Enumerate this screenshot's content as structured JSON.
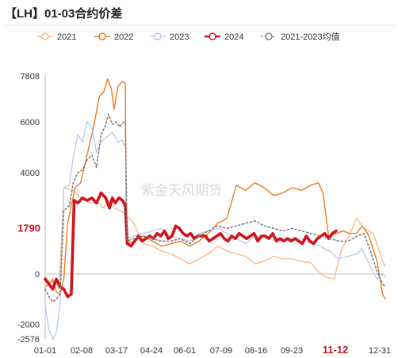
{
  "title": "【LH】01-03合约价差",
  "watermark": "紫金天风期货",
  "chart_data": {
    "type": "line",
    "title": "【LH】01-03合约价差",
    "xlabel": "",
    "ylabel": "",
    "ylim": [
      -2576,
      7808
    ],
    "yticks": [
      7808,
      6000,
      4000,
      1790,
      0,
      -2000,
      -2576
    ],
    "yticks_highlight": [
      1790
    ],
    "xticks": [
      "01-01",
      "02-08",
      "03-17",
      "04-24",
      "06-01",
      "07-09",
      "08-16",
      "09-23",
      "11-12",
      "12-31"
    ],
    "xticks_highlight": [
      "11-12"
    ],
    "grid": false,
    "legend_position": "top",
    "series": [
      {
        "name": "2021",
        "color": "#f5b27a",
        "width": 1.2,
        "dash": "",
        "points": [
          [
            0,
            -100
          ],
          [
            5,
            -350
          ],
          [
            10,
            -300
          ],
          [
            15,
            -600
          ],
          [
            20,
            3400
          ],
          [
            30,
            3300
          ],
          [
            38,
            3000
          ],
          [
            48,
            2800
          ],
          [
            58,
            2800
          ],
          [
            62,
            2600
          ],
          [
            68,
            2900
          ],
          [
            75,
            2600
          ],
          [
            85,
            2400
          ],
          [
            95,
            2000
          ],
          [
            105,
            1200
          ],
          [
            115,
            1100
          ],
          [
            125,
            900
          ],
          [
            135,
            800
          ],
          [
            145,
            600
          ],
          [
            155,
            400
          ],
          [
            165,
            600
          ],
          [
            175,
            800
          ],
          [
            185,
            1100
          ],
          [
            195,
            900
          ],
          [
            205,
            800
          ],
          [
            215,
            700
          ],
          [
            225,
            400
          ],
          [
            235,
            500
          ],
          [
            245,
            700
          ],
          [
            255,
            600
          ],
          [
            265,
            600
          ],
          [
            275,
            500
          ],
          [
            285,
            450
          ],
          [
            290,
            200
          ],
          [
            300,
            -100
          ],
          [
            310,
            -200
          ],
          [
            318,
            1000
          ],
          [
            326,
            1500
          ],
          [
            334,
            2200
          ],
          [
            342,
            1800
          ],
          [
            352,
            1600
          ],
          [
            362,
            500
          ],
          [
            365,
            300
          ]
        ]
      },
      {
        "name": "2022",
        "color": "#ee7b1e",
        "width": 1.4,
        "dash": "",
        "points": [
          [
            0,
            -500
          ],
          [
            4,
            -400
          ],
          [
            8,
            -200
          ],
          [
            12,
            -700
          ],
          [
            16,
            -800
          ],
          [
            20,
            -200
          ],
          [
            24,
            2000
          ],
          [
            32,
            3400
          ],
          [
            38,
            3600
          ],
          [
            45,
            4700
          ],
          [
            52,
            5800
          ],
          [
            58,
            7000
          ],
          [
            63,
            7200
          ],
          [
            67,
            7700
          ],
          [
            71,
            7300
          ],
          [
            74,
            6500
          ],
          [
            78,
            7400
          ],
          [
            83,
            7600
          ],
          [
            86,
            7500
          ],
          [
            87,
            1200
          ],
          [
            95,
            1300
          ],
          [
            105,
            1500
          ],
          [
            115,
            1300
          ],
          [
            125,
            1100
          ],
          [
            135,
            1200
          ],
          [
            145,
            1300
          ],
          [
            155,
            1100
          ],
          [
            165,
            1300
          ],
          [
            175,
            1600
          ],
          [
            185,
            2000
          ],
          [
            195,
            2200
          ],
          [
            205,
            3500
          ],
          [
            215,
            3300
          ],
          [
            225,
            3600
          ],
          [
            235,
            3400
          ],
          [
            245,
            3100
          ],
          [
            255,
            3200
          ],
          [
            265,
            3400
          ],
          [
            275,
            3300
          ],
          [
            285,
            3500
          ],
          [
            293,
            3600
          ],
          [
            298,
            3200
          ],
          [
            304,
            1500
          ],
          [
            312,
            1600
          ],
          [
            320,
            1700
          ],
          [
            326,
            1600
          ],
          [
            334,
            1600
          ],
          [
            340,
            1900
          ],
          [
            346,
            1600
          ],
          [
            350,
            1200
          ],
          [
            356,
            500
          ],
          [
            362,
            -800
          ],
          [
            365,
            -1000
          ]
        ]
      },
      {
        "name": "2023",
        "color": "#b3c6e7",
        "width": 1.2,
        "dash": "",
        "points": [
          [
            0,
            -1200
          ],
          [
            4,
            -2200
          ],
          [
            8,
            -2600
          ],
          [
            12,
            -2300
          ],
          [
            16,
            -1200
          ],
          [
            20,
            3400
          ],
          [
            26,
            3500
          ],
          [
            30,
            4600
          ],
          [
            35,
            5500
          ],
          [
            40,
            5200
          ],
          [
            45,
            6000
          ],
          [
            50,
            5800
          ],
          [
            55,
            4800
          ],
          [
            60,
            5200
          ],
          [
            66,
            5400
          ],
          [
            72,
            5600
          ],
          [
            78,
            5200
          ],
          [
            82,
            5300
          ],
          [
            86,
            5000
          ],
          [
            88,
            1400
          ],
          [
            95,
            1500
          ],
          [
            105,
            1600
          ],
          [
            115,
            1700
          ],
          [
            125,
            1800
          ],
          [
            135,
            1500
          ],
          [
            145,
            1400
          ],
          [
            155,
            1300
          ],
          [
            165,
            1600
          ],
          [
            175,
            1700
          ],
          [
            185,
            1800
          ],
          [
            195,
            1600
          ],
          [
            205,
            1400
          ],
          [
            215,
            1200
          ],
          [
            225,
            1500
          ],
          [
            235,
            1400
          ],
          [
            245,
            1500
          ],
          [
            255,
            1300
          ],
          [
            265,
            1400
          ],
          [
            275,
            1400
          ],
          [
            285,
            1200
          ],
          [
            295,
            1100
          ],
          [
            305,
            900
          ],
          [
            315,
            600
          ],
          [
            325,
            700
          ],
          [
            335,
            800
          ],
          [
            340,
            1000
          ],
          [
            346,
            500
          ],
          [
            350,
            200
          ],
          [
            356,
            -200
          ],
          [
            360,
            0
          ],
          [
            365,
            -100
          ]
        ]
      },
      {
        "name": "2024",
        "color": "#d0131c",
        "width": 3.6,
        "dash": "",
        "points": [
          [
            0,
            -200
          ],
          [
            4,
            -400
          ],
          [
            8,
            -600
          ],
          [
            12,
            -200
          ],
          [
            16,
            -500
          ],
          [
            20,
            -600
          ],
          [
            24,
            -900
          ],
          [
            28,
            -800
          ],
          [
            31,
            2900
          ],
          [
            35,
            2800
          ],
          [
            40,
            3000
          ],
          [
            45,
            2900
          ],
          [
            50,
            3000
          ],
          [
            55,
            2800
          ],
          [
            60,
            3200
          ],
          [
            65,
            3000
          ],
          [
            69,
            2600
          ],
          [
            72,
            3000
          ],
          [
            75,
            2800
          ],
          [
            79,
            3000
          ],
          [
            83,
            2900
          ],
          [
            86,
            2700
          ],
          [
            88,
            1200
          ],
          [
            92,
            1100
          ],
          [
            96,
            1300
          ],
          [
            100,
            1500
          ],
          [
            104,
            1300
          ],
          [
            108,
            1400
          ],
          [
            112,
            1500
          ],
          [
            116,
            1400
          ],
          [
            120,
            1600
          ],
          [
            124,
            1500
          ],
          [
            128,
            1700
          ],
          [
            132,
            1400
          ],
          [
            136,
            1500
          ],
          [
            140,
            1900
          ],
          [
            144,
            1800
          ],
          [
            148,
            1600
          ],
          [
            152,
            1500
          ],
          [
            156,
            1600
          ],
          [
            160,
            1400
          ],
          [
            164,
            1500
          ],
          [
            168,
            1500
          ],
          [
            172,
            1500
          ],
          [
            176,
            1300
          ],
          [
            180,
            1400
          ],
          [
            184,
            1500
          ],
          [
            188,
            1600
          ],
          [
            192,
            1400
          ],
          [
            196,
            1300
          ],
          [
            200,
            1500
          ],
          [
            204,
            1400
          ],
          [
            208,
            1600
          ],
          [
            212,
            1500
          ],
          [
            216,
            1400
          ],
          [
            220,
            1500
          ],
          [
            224,
            1600
          ],
          [
            228,
            1300
          ],
          [
            232,
            1500
          ],
          [
            236,
            1500
          ],
          [
            240,
            1400
          ],
          [
            244,
            1600
          ],
          [
            248,
            1300
          ],
          [
            252,
            1400
          ],
          [
            256,
            1300
          ],
          [
            260,
            1400
          ],
          [
            264,
            1300
          ],
          [
            268,
            1400
          ],
          [
            272,
            1300
          ],
          [
            276,
            1200
          ],
          [
            280,
            1500
          ],
          [
            284,
            1300
          ],
          [
            288,
            1200
          ],
          [
            292,
            1400
          ],
          [
            296,
            1500
          ],
          [
            300,
            1600
          ],
          [
            304,
            1400
          ],
          [
            308,
            1600
          ],
          [
            312,
            1700
          ]
        ]
      },
      {
        "name": "2021-2023均值",
        "color": "#7f7f7f",
        "width": 1.6,
        "dash": "2,3",
        "points": [
          [
            0,
            -600
          ],
          [
            4,
            -900
          ],
          [
            8,
            -1100
          ],
          [
            12,
            -1000
          ],
          [
            16,
            -800
          ],
          [
            20,
            2500
          ],
          [
            26,
            2700
          ],
          [
            30,
            3600
          ],
          [
            35,
            4000
          ],
          [
            40,
            4100
          ],
          [
            45,
            4500
          ],
          [
            50,
            4700
          ],
          [
            55,
            4200
          ],
          [
            60,
            5500
          ],
          [
            64,
            5800
          ],
          [
            68,
            6300
          ],
          [
            72,
            5900
          ],
          [
            76,
            6000
          ],
          [
            80,
            5800
          ],
          [
            84,
            6000
          ],
          [
            86,
            5900
          ],
          [
            88,
            1300
          ],
          [
            95,
            1400
          ],
          [
            105,
            1500
          ],
          [
            115,
            1400
          ],
          [
            125,
            1300
          ],
          [
            135,
            1300
          ],
          [
            145,
            1400
          ],
          [
            155,
            1200
          ],
          [
            165,
            1500
          ],
          [
            175,
            1700
          ],
          [
            185,
            1900
          ],
          [
            195,
            1800
          ],
          [
            205,
            1900
          ],
          [
            215,
            2000
          ],
          [
            225,
            2100
          ],
          [
            235,
            1900
          ],
          [
            245,
            1800
          ],
          [
            255,
            1700
          ],
          [
            265,
            1800
          ],
          [
            275,
            1700
          ],
          [
            285,
            1600
          ],
          [
            295,
            1500
          ],
          [
            305,
            1400
          ],
          [
            315,
            1300
          ],
          [
            325,
            1300
          ],
          [
            335,
            1500
          ],
          [
            342,
            1600
          ],
          [
            350,
            800
          ],
          [
            356,
            100
          ],
          [
            362,
            -400
          ],
          [
            365,
            -500
          ]
        ]
      }
    ]
  }
}
